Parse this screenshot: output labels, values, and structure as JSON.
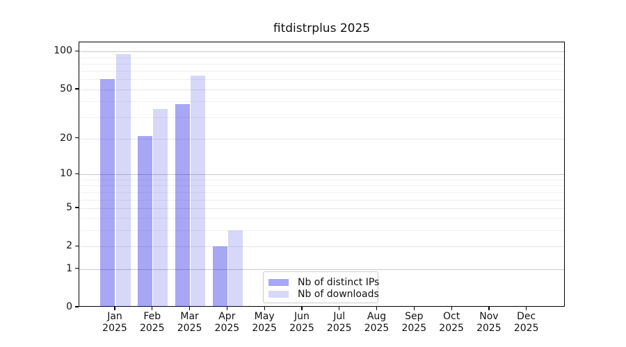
{
  "chart_data": {
    "type": "bar",
    "title": "fitdistrplus 2025",
    "categories": [
      "Jan 2025",
      "Feb 2025",
      "Mar 2025",
      "Apr 2025",
      "May 2025",
      "Jun 2025",
      "Jul 2025",
      "Aug 2025",
      "Sep 2025",
      "Oct 2025",
      "Nov 2025",
      "Dec 2025"
    ],
    "series": [
      {
        "name": "Nb of distinct IPs",
        "color": "#a7a7f6",
        "color_rgba": "rgba(0,0,230,0.345)",
        "values": [
          60,
          21,
          38,
          2,
          0,
          0,
          0,
          0,
          0,
          0,
          0,
          0
        ]
      },
      {
        "name": "Nb of downloads",
        "color": "#d7d7f9",
        "color_rgba": "rgba(0,0,215,0.155)",
        "values": [
          95,
          35,
          64,
          3,
          0,
          0,
          0,
          0,
          0,
          0,
          0,
          0
        ]
      }
    ],
    "yticks": [
      0,
      1,
      2,
      5,
      10,
      20,
      50,
      100
    ],
    "yscale": "log10(1+x)",
    "ylim": [
      0,
      118
    ],
    "xlabel": "",
    "ylabel": "",
    "grid": "horizontal major+minor",
    "legend_position": "lower center-left inside plot"
  }
}
